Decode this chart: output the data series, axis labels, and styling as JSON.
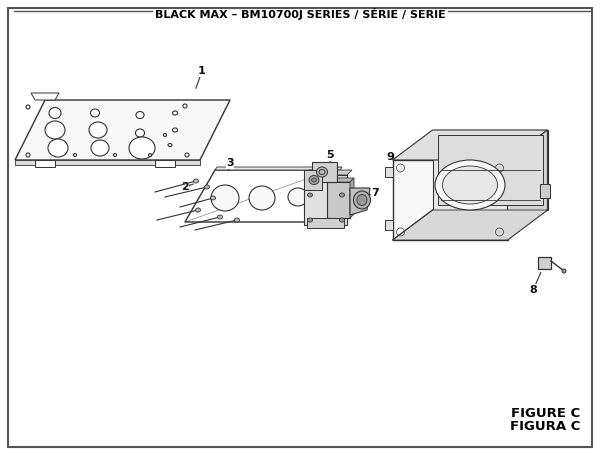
{
  "title": "BLACK MAX – BM10700J SERIES / SÉRIE / SERIE",
  "figure_label": "FIGURE C",
  "figure_label2": "FIGURA C",
  "bg_color": "#ffffff",
  "lc": "#333333",
  "tc": "#111111"
}
